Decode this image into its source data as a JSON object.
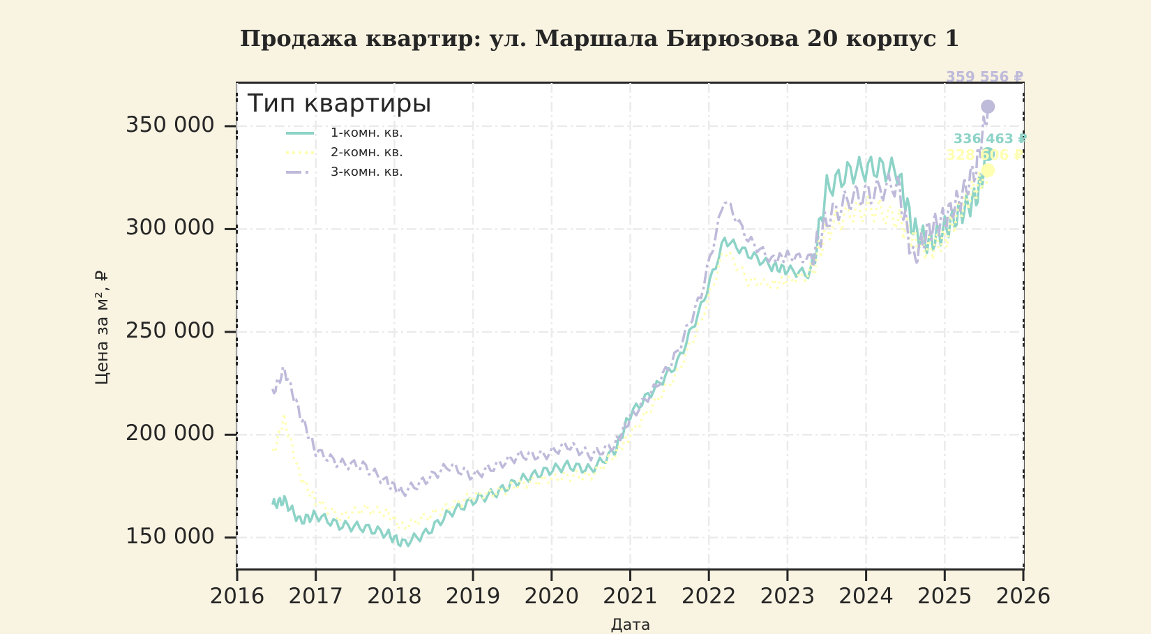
{
  "title": "Продажа квартир: ул. Маршала Бирюзова 20 корпус 1",
  "axes": {
    "xlabel": "Дата",
    "ylabel": "Цена за м², ₽",
    "yticks": [
      "150 000",
      "200 000",
      "250 000",
      "300 000",
      "350 000"
    ],
    "xticks": [
      "2016",
      "2017",
      "2018",
      "2019",
      "2020",
      "2021",
      "2022",
      "2023",
      "2024",
      "2025",
      "2026"
    ]
  },
  "legend": {
    "title": "Тип квартиры",
    "items": [
      {
        "label": "1-комн. кв.",
        "color": "#8dd3c7",
        "style": "solid"
      },
      {
        "label": "2-комн. кв.",
        "color": "#ffffb3",
        "style": "dotted"
      },
      {
        "label": "3-комн. кв.",
        "color": "#bebada",
        "style": "dashdot"
      }
    ]
  },
  "annotations": [
    {
      "label": "359 556 ₽",
      "color": "#bebada"
    },
    {
      "label": "336 463 ₽",
      "color": "#8dd3c7"
    },
    {
      "label": "328 606 ₽",
      "color": "#ffffb3"
    }
  ],
  "chart_data": {
    "type": "line",
    "title": "Продажа квартир: ул. Маршала Бирюзова 20 корпус 1",
    "xlabel": "Дата",
    "ylabel": "Цена за м², ₽",
    "xlim": [
      2016,
      2026
    ],
    "ylim": [
      135000,
      371000
    ],
    "grid": true,
    "legend_position": "upper left",
    "x": [
      2016.45,
      2016.6,
      2016.8,
      2017.0,
      2017.3,
      2017.6,
      2017.9,
      2018.1,
      2018.4,
      2018.7,
      2019.0,
      2019.3,
      2019.6,
      2019.9,
      2020.2,
      2020.5,
      2020.8,
      2021.0,
      2021.3,
      2021.6,
      2021.9,
      2022.2,
      2022.5,
      2022.8,
      2023.0,
      2023.3,
      2023.5,
      2023.8,
      2024.1,
      2024.4,
      2024.6,
      2024.8,
      2025.0,
      2025.2,
      2025.4,
      2025.55
    ],
    "series": [
      {
        "name": "1-комн. кв.",
        "values": [
          166000,
          168000,
          158000,
          161000,
          156000,
          155000,
          152000,
          147000,
          152000,
          162000,
          168000,
          172000,
          178000,
          182000,
          185000,
          183000,
          192000,
          210000,
          222000,
          235000,
          262000,
          295000,
          288000,
          282000,
          280000,
          278000,
          320000,
          328000,
          330000,
          328000,
          300000,
          293000,
          300000,
          308000,
          315000,
          336463
        ]
      },
      {
        "name": "2-комн. кв.",
        "values": [
          190000,
          208000,
          180000,
          168000,
          160000,
          164000,
          162000,
          155000,
          160000,
          165000,
          170000,
          172000,
          176000,
          178000,
          180000,
          180000,
          190000,
          200000,
          215000,
          230000,
          255000,
          290000,
          275000,
          273000,
          275000,
          278000,
          300000,
          308000,
          310000,
          305000,
          295000,
          290000,
          295000,
          310000,
          320000,
          328606
        ]
      },
      {
        "name": "3-комн. кв.",
        "values": [
          220000,
          232000,
          210000,
          192000,
          186000,
          185000,
          177000,
          172000,
          178000,
          185000,
          180000,
          185000,
          190000,
          190000,
          195000,
          190000,
          195000,
          208000,
          222000,
          240000,
          268000,
          315000,
          295000,
          285000,
          287000,
          285000,
          305000,
          315000,
          318000,
          322000,
          285000,
          300000,
          305000,
          315000,
          330000,
          359556
        ]
      }
    ]
  }
}
